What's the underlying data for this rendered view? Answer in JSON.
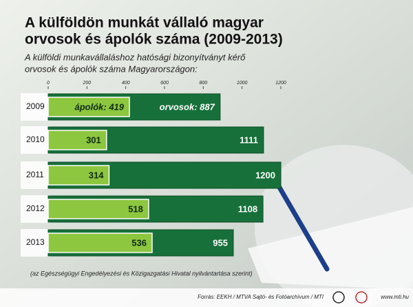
{
  "chart_data": {
    "type": "bar",
    "orientation": "horizontal",
    "overlap": true,
    "title": [
      "A külföldön munkát vállaló magyar",
      "orvosok és ápolók száma (2009-2013)"
    ],
    "subtitle": [
      "A külföldi munkavállaláshoz hatósági bizonyítványt kérő",
      "orvosok és ápolók száma Magyarországon:"
    ],
    "categories": [
      "2009",
      "2010",
      "2011",
      "2012",
      "2013"
    ],
    "series": [
      {
        "color": "#17703a",
        "values": [
          887,
          1111,
          1200,
          1108,
          955
        ],
        "value_labels": [
          "orvosok: 887",
          "1111",
          "1200",
          "1108",
          "955"
        ]
      },
      {
        "color": "#8dc63f",
        "values": [
          419,
          301,
          314,
          518,
          536
        ],
        "value_labels": [
          "ápolók: 419",
          "301",
          "314",
          "518",
          "536"
        ]
      }
    ],
    "xlim": [
      0,
      1200
    ],
    "xticks": [
      0,
      200,
      400,
      600,
      800,
      1000,
      1200
    ],
    "note": "(az Egészségügyi Engedélyezési és Közigazgatási Hivatal nyilvántartása szerint)",
    "source": "Forrás: EEKH / MTVA Sajtó- és Fotóarchívum / MTI",
    "website": "www.mti.hu"
  }
}
